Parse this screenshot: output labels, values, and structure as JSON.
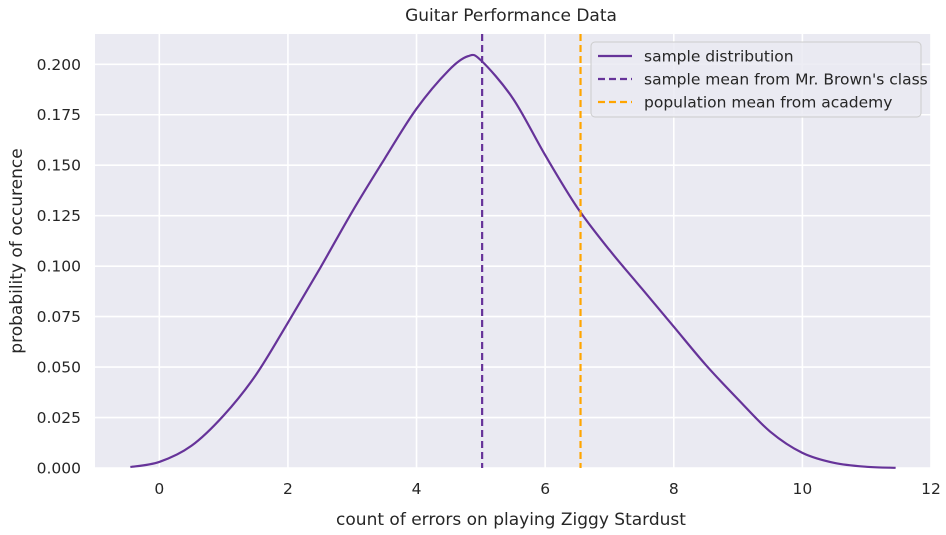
{
  "chart_data": {
    "type": "line",
    "title": "Guitar Performance Data",
    "xlabel": "count of errors on playing Ziggy Stardust",
    "ylabel": "probability of occurence",
    "xlim": [
      -1,
      12
    ],
    "ylim": [
      0,
      0.215
    ],
    "xticks": [
      0,
      2,
      4,
      6,
      8,
      10,
      12
    ],
    "yticks": [
      0.0,
      0.025,
      0.05,
      0.075,
      0.1,
      0.125,
      0.15,
      0.175,
      0.2
    ],
    "ytick_labels": [
      "0.000",
      "0.025",
      "0.050",
      "0.075",
      "0.100",
      "0.125",
      "0.150",
      "0.175",
      "0.200"
    ],
    "xtick_labels": [
      "0",
      "2",
      "4",
      "6",
      "8",
      "10",
      "12"
    ],
    "grid": true,
    "legend_position": "top-right",
    "series": [
      {
        "name": "sample distribution",
        "style": "solid",
        "color": "#663399",
        "x": [
          -0.45,
          0,
          0.5,
          1,
          1.5,
          2,
          2.5,
          3,
          3.5,
          4,
          4.5,
          4.8,
          5.0,
          5.5,
          6,
          6.5,
          7,
          7.5,
          8,
          8.5,
          9,
          9.5,
          10,
          10.5,
          11,
          11.45
        ],
        "y": [
          0.0005,
          0.003,
          0.011,
          0.026,
          0.046,
          0.072,
          0.099,
          0.127,
          0.153,
          0.178,
          0.197,
          0.204,
          0.202,
          0.183,
          0.155,
          0.129,
          0.108,
          0.089,
          0.07,
          0.051,
          0.034,
          0.018,
          0.0075,
          0.0025,
          0.0006,
          0.0001
        ]
      }
    ],
    "vlines": [
      {
        "name": "sample mean from Mr. Brown's class",
        "x": 5.02,
        "style": "dashed",
        "color": "#663399"
      },
      {
        "name": "population mean from academy",
        "x": 6.55,
        "style": "dashed",
        "color": "#FFA500"
      }
    ]
  },
  "colors": {
    "plot_background": "#EAEAF2",
    "grid": "#FFFFFF",
    "sample_line": "#663399",
    "population_line": "#FFA500"
  }
}
